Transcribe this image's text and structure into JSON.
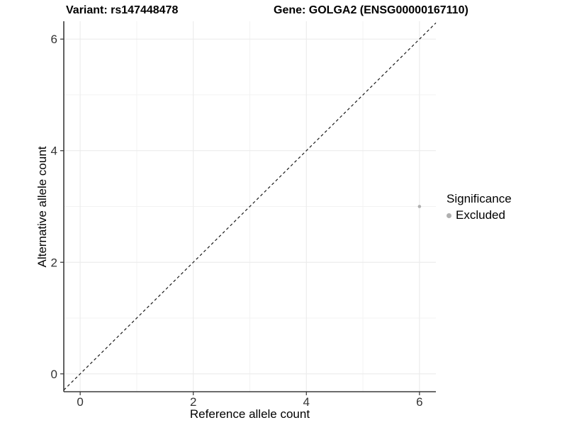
{
  "chart_data": {
    "type": "scatter",
    "title_left": "Variant: rs147448478",
    "title_right": "Gene: GOLGA2 (ENSG00000167110)",
    "xlabel": "Reference allele count",
    "ylabel": "Alternative allele count",
    "xlim": [
      -0.29,
      6.29
    ],
    "ylim": [
      -0.32,
      6.32
    ],
    "x_major_ticks": [
      0,
      2,
      4,
      6
    ],
    "y_major_ticks": [
      0,
      2,
      4,
      6
    ],
    "x_minor_ticks": [
      1,
      3,
      5
    ],
    "y_minor_ticks": [
      1,
      3,
      5
    ],
    "grid": true,
    "identity_line": {
      "slope": 1,
      "intercept": 0,
      "style": "dashed"
    },
    "points": [
      {
        "x": 6,
        "y": 3,
        "significance": "Excluded"
      }
    ],
    "legend": {
      "position": "right",
      "title": "Significance",
      "items": [
        {
          "label": "Excluded",
          "color": "#b0b0b0"
        }
      ]
    },
    "colors": {
      "background": "#ffffff",
      "panel_background": "#ffffff",
      "grid_major": "#ebebeb",
      "grid_minor": "#f2f2f2",
      "axis_line": "#3b3b3b",
      "tick_mark": "#333333",
      "tick_label": "#333333",
      "identity_line": "#1a1a1a",
      "point": "#b0b0b0"
    }
  }
}
